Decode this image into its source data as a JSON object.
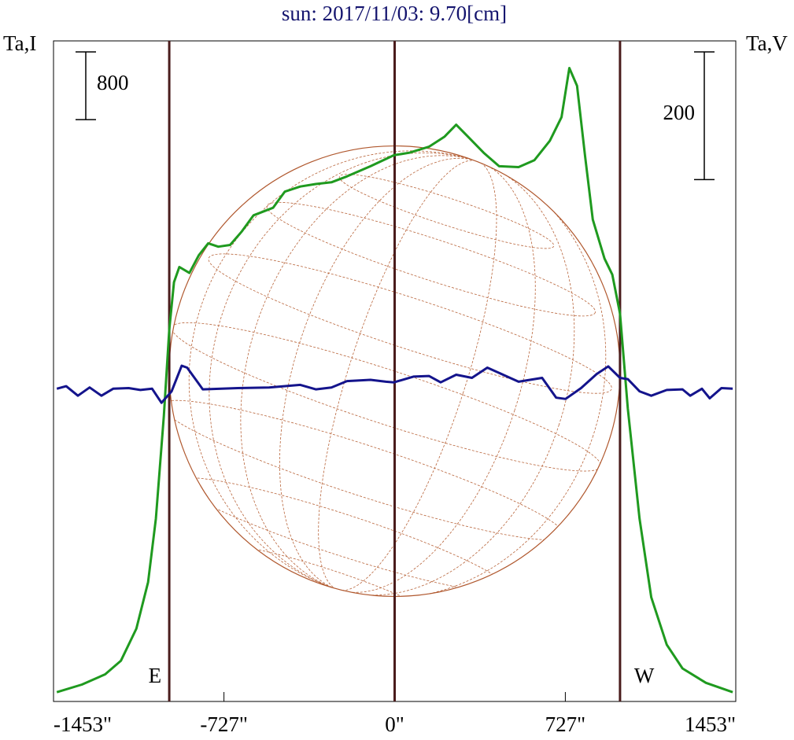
{
  "chart_data": {
    "type": "line",
    "title": "sun: 2017/11/03: 9.70[cm]",
    "y_label": "Ta,I",
    "y2_label": "Ta,V",
    "xlim": [
      -1453,
      1453
    ],
    "xticks": [
      {
        "value": -1453,
        "label": "-1453\""
      },
      {
        "value": -727,
        "label": "-727\""
      },
      {
        "value": 0,
        "label": "0\""
      },
      {
        "value": 727,
        "label": "727\""
      },
      {
        "value": 1453,
        "label": "1453\""
      }
    ],
    "ylim": [
      0,
      7800
    ],
    "y2lim": [
      -490,
      545
    ],
    "scale_bars": [
      {
        "value": 800,
        "axis": "y"
      },
      {
        "value": 200,
        "axis": "y2"
      }
    ],
    "vlines": [
      {
        "value": -960,
        "label": "E"
      },
      {
        "value": 0
      },
      {
        "value": 960,
        "label": "W"
      }
    ],
    "disk_radius": 960,
    "series": [
      {
        "name": "I",
        "color": "#1f9a1f",
        "axis": "y",
        "x": [
          -1439,
          -1332,
          -1233,
          -1166,
          -1100,
          -1050,
          -1017,
          -983,
          -960,
          -940,
          -917,
          -874,
          -834,
          -794,
          -751,
          -701,
          -651,
          -601,
          -518,
          -468,
          -402,
          -336,
          -269,
          -203,
          -103,
          -3,
          63,
          146,
          213,
          262,
          312,
          379,
          445,
          528,
          595,
          661,
          711,
          744,
          777,
          811,
          844,
          894,
          927,
          960,
          993,
          1043,
          1093,
          1159,
          1226,
          1326,
          1440
        ],
        "values": [
          110,
          200,
          320,
          480,
          860,
          1410,
          2160,
          3370,
          4390,
          4950,
          5130,
          5060,
          5270,
          5410,
          5370,
          5390,
          5550,
          5740,
          5830,
          6020,
          6080,
          6110,
          6130,
          6200,
          6320,
          6450,
          6480,
          6550,
          6670,
          6810,
          6670,
          6480,
          6320,
          6310,
          6390,
          6620,
          6900,
          7480,
          7270,
          6440,
          5690,
          5230,
          5040,
          4580,
          3460,
          2160,
          1230,
          670,
          390,
          220,
          110
        ]
      },
      {
        "name": "V",
        "color": "#14148c",
        "axis": "y2",
        "x": [
          -1439,
          -1399,
          -1349,
          -1299,
          -1249,
          -1199,
          -1133,
          -1083,
          -1033,
          -993,
          -950,
          -907,
          -884,
          -817,
          -668,
          -535,
          -402,
          -336,
          -269,
          -203,
          -103,
          -37,
          -3,
          80,
          146,
          196,
          262,
          329,
          395,
          462,
          528,
          628,
          688,
          728,
          794,
          860,
          910,
          960,
          993,
          1043,
          1093,
          1159,
          1226,
          1259,
          1309,
          1342,
          1392,
          1440
        ],
        "values": [
          0,
          4,
          -11,
          2,
          -11,
          0,
          1,
          -2,
          0,
          -22,
          -4,
          36,
          33,
          -1,
          1,
          2,
          6,
          -1,
          2,
          12,
          14,
          11,
          10,
          19,
          20,
          10,
          22,
          17,
          33,
          22,
          11,
          17,
          -14,
          -16,
          1,
          23,
          35,
          17,
          15,
          -4,
          -11,
          -2,
          -1,
          -11,
          0,
          -15,
          1,
          0
        ]
      }
    ]
  }
}
